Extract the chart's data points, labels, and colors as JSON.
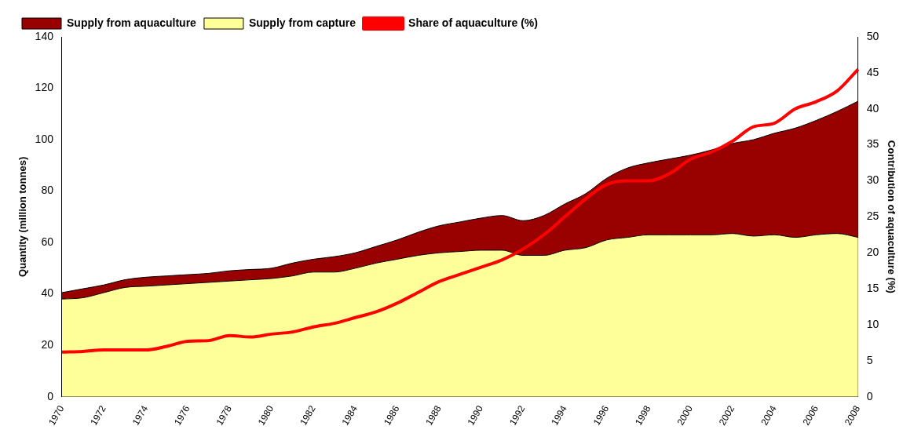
{
  "chart_data": {
    "type": "area",
    "stacked": true,
    "ylabel": "Quantity (million tonnes)",
    "y2label": "Contribution of aquaculture (%)",
    "categories": [
      "1970",
      null,
      "1972",
      null,
      "1974",
      null,
      "1976",
      null,
      "1978",
      null,
      "1980",
      null,
      "1982",
      null,
      "1984",
      null,
      "1986",
      null,
      "1988",
      null,
      "1990",
      null,
      "1992",
      null,
      "1994",
      null,
      "1996",
      null,
      "1998",
      null,
      "2000",
      null,
      "2002",
      null,
      "2004",
      null,
      "2006",
      null,
      "2008"
    ],
    "series": [
      {
        "name": "Supply from capture",
        "color": "#ffff99",
        "values": [
          38,
          38.5,
          40.5,
          42.5,
          43,
          43.5,
          44,
          44.5,
          45,
          45.5,
          46,
          47,
          48.5,
          48.5,
          50,
          52,
          53.5,
          55,
          56,
          56.5,
          57,
          57,
          55,
          55,
          57,
          58,
          61,
          62,
          63,
          63,
          63,
          63,
          63.5,
          62.5,
          63,
          62,
          63,
          63.5,
          62
        ]
      },
      {
        "name": "Supply from aquaculture",
        "color": "#990000",
        "values": [
          2.5,
          3.5,
          3,
          3,
          3.5,
          3.5,
          3.5,
          3.5,
          4,
          4,
          4,
          5,
          5,
          6,
          6,
          6.5,
          7.5,
          9,
          10.5,
          11.5,
          12.5,
          13.5,
          13.5,
          15.5,
          18,
          21,
          24,
          27,
          28,
          29.5,
          31,
          33,
          35,
          37.5,
          39.5,
          42.5,
          44.5,
          47.5,
          53
        ]
      },
      {
        "name": "Share of aquaculture (%)",
        "type": "line",
        "axis": "y2",
        "color": "#ff0000",
        "values": [
          6.2,
          6.3,
          6.5,
          6.5,
          6.5,
          7,
          7.7,
          7.8,
          8.5,
          8.3,
          8.7,
          9,
          9.7,
          10.2,
          11,
          11.8,
          13,
          14.5,
          16,
          17,
          18,
          19,
          20.5,
          22.5,
          25,
          27.5,
          29.5,
          30,
          30,
          31,
          33,
          34,
          35.5,
          37.5,
          38,
          40,
          41,
          42.5,
          45.5
        ]
      }
    ],
    "ylim": [
      0,
      140
    ],
    "yticks": [
      0,
      20,
      40,
      60,
      80,
      100,
      120,
      140
    ],
    "y2lim": [
      0,
      50
    ],
    "y2ticks": [
      0,
      5,
      10,
      15,
      20,
      25,
      30,
      35,
      40,
      45,
      50
    ],
    "grid": false,
    "legend": "top left",
    "marker": "none",
    "line_style": "solid"
  }
}
